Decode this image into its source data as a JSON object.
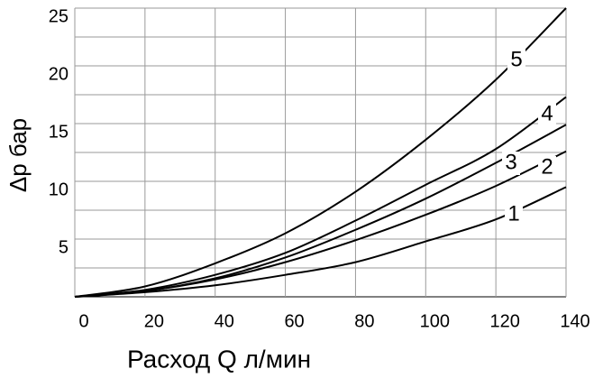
{
  "chart_data": {
    "type": "line",
    "xlabel": "Расход Q л/мин",
    "ylabel": "Δp бар",
    "x": [
      0,
      20,
      40,
      60,
      80,
      100,
      120,
      140
    ],
    "series": [
      {
        "name": "1",
        "color": "#000000",
        "values": [
          0,
          0.4,
          1.0,
          1.9,
          3.0,
          4.8,
          6.7,
          9.5
        ]
      },
      {
        "name": "2",
        "color": "#000000",
        "values": [
          0,
          0.5,
          1.5,
          3.0,
          4.9,
          7.1,
          9.6,
          12.6
        ]
      },
      {
        "name": "3",
        "color": "#000000",
        "values": [
          0,
          0.5,
          1.6,
          3.4,
          5.8,
          8.5,
          11.6,
          14.9
        ]
      },
      {
        "name": "4",
        "color": "#000000",
        "values": [
          0,
          0.6,
          1.9,
          3.8,
          6.6,
          9.7,
          12.8,
          17.3
        ]
      },
      {
        "name": "5",
        "color": "#000000",
        "values": [
          0,
          0.9,
          2.9,
          5.5,
          9.1,
          13.6,
          18.8,
          25
        ]
      }
    ],
    "xlim": [
      0,
      140
    ],
    "xticks": [
      0,
      20,
      40,
      60,
      80,
      100,
      120,
      140
    ],
    "ylim": [
      0,
      25
    ],
    "yticks": [
      5,
      10,
      15,
      20,
      25
    ],
    "y_minor_ticks": [
      2.5,
      7.5,
      12.5,
      17.5,
      22.5
    ],
    "grid": true
  }
}
